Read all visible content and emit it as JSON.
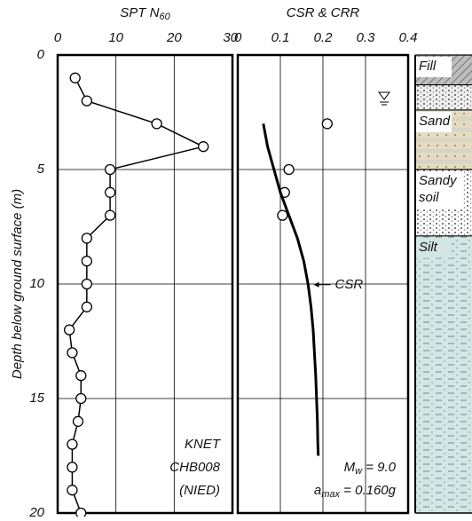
{
  "chart_data": [
    {
      "type": "line",
      "title": {
        "text": "SPT N",
        "sub": "60"
      },
      "ylabel": "Depth below ground surface (m)",
      "xlim": [
        0,
        30
      ],
      "xticks": [
        0,
        10,
        20,
        30
      ],
      "ylim": [
        0,
        20
      ],
      "yticks": [
        0,
        5,
        10,
        15,
        20
      ],
      "grid": true,
      "series": [
        {
          "color": "#000000",
          "style": "line-markers",
          "depth": [
            1,
            2,
            3,
            4,
            5,
            6,
            7,
            8,
            9,
            10,
            11,
            12,
            13,
            14,
            15,
            16,
            17,
            18,
            19,
            20
          ],
          "values": [
            3,
            5,
            17,
            25,
            9,
            9,
            9,
            5,
            5,
            5,
            5,
            2,
            2.5,
            4,
            4,
            3.5,
            2.5,
            2.5,
            2.5,
            4
          ]
        }
      ],
      "notes": [
        {
          "text": "KNET"
        },
        {
          "text": "CHB008"
        },
        {
          "text": "(NIED)"
        }
      ]
    },
    {
      "type": "line",
      "title": {
        "text": "CSR & CRR"
      },
      "xlim": [
        0,
        0.4
      ],
      "xticks": [
        0,
        0.1,
        0.2,
        0.3,
        0.4
      ],
      "ylim": [
        0,
        20
      ],
      "yticks": [
        0,
        5,
        10,
        15,
        20
      ],
      "show_ytick_labels": false,
      "grid": true,
      "series": [
        {
          "color": "#000000",
          "style": "markers",
          "depth": [
            3,
            5,
            6,
            7
          ],
          "values": [
            0.21,
            0.12,
            0.11,
            0.105
          ]
        },
        {
          "name": "CSR",
          "color": "#000000",
          "style": "line",
          "depth": [
            3,
            4,
            5,
            6,
            7,
            8,
            9,
            10,
            11,
            12,
            13,
            14,
            15,
            16,
            17,
            17.5
          ],
          "values": [
            0.06,
            0.07,
            0.085,
            0.1,
            0.12,
            0.14,
            0.155,
            0.165,
            0.172,
            0.177,
            0.18,
            0.183,
            0.185,
            0.187,
            0.188,
            0.189
          ]
        }
      ],
      "notes": [
        {
          "text": "M",
          "sub": "w",
          "rest": " = 9.0"
        },
        {
          "text": "a",
          "sub": "max",
          "rest": " = 0.160g"
        }
      ]
    }
  ],
  "soil_column": {
    "layers": [
      {
        "label": [
          "Fill"
        ],
        "top": 0,
        "bottom": 1.3,
        "color": "#ffffff",
        "texture": "hatch"
      },
      {
        "label": null,
        "top": 1.3,
        "bottom": 2.4,
        "color": "#eeeeee",
        "texture": "dots"
      },
      {
        "label": [
          "Sand"
        ],
        "top": 2.4,
        "bottom": 5.0,
        "color": "#e4dcc0",
        "texture": "bands"
      },
      {
        "label": [
          "Sandy",
          "soil"
        ],
        "top": 5.0,
        "bottom": 7.9,
        "color": "#ffffff",
        "texture": "dots"
      },
      {
        "label": [
          "Silt"
        ],
        "top": 7.9,
        "bottom": 20,
        "color": "#d2e6e4",
        "texture": "dashes"
      }
    ]
  }
}
